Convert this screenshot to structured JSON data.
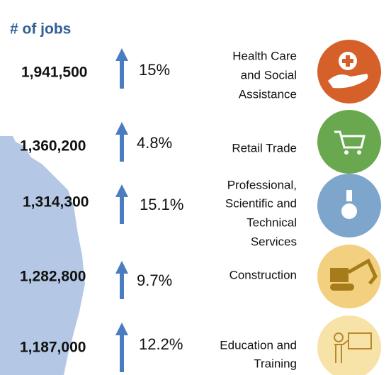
{
  "header": {
    "title": "# of jobs"
  },
  "rows": [
    {
      "jobs": "1,941,500",
      "change": "15%",
      "industry": [
        "Health Care",
        "and Social",
        "Assistance"
      ]
    },
    {
      "jobs": "1,360,200",
      "change": "4.8%",
      "industry": [
        "Retail Trade"
      ]
    },
    {
      "jobs": "1,314,300",
      "change": "15.1%",
      "industry": [
        "Professional,",
        "Scientific and",
        "Technical",
        "Services"
      ]
    },
    {
      "jobs": "1,282,800",
      "change": "9.7%",
      "industry": [
        "Construction"
      ]
    },
    {
      "jobs": "1,187,000",
      "change": "12.2%",
      "industry": [
        "Education and",
        "Training"
      ]
    }
  ]
}
